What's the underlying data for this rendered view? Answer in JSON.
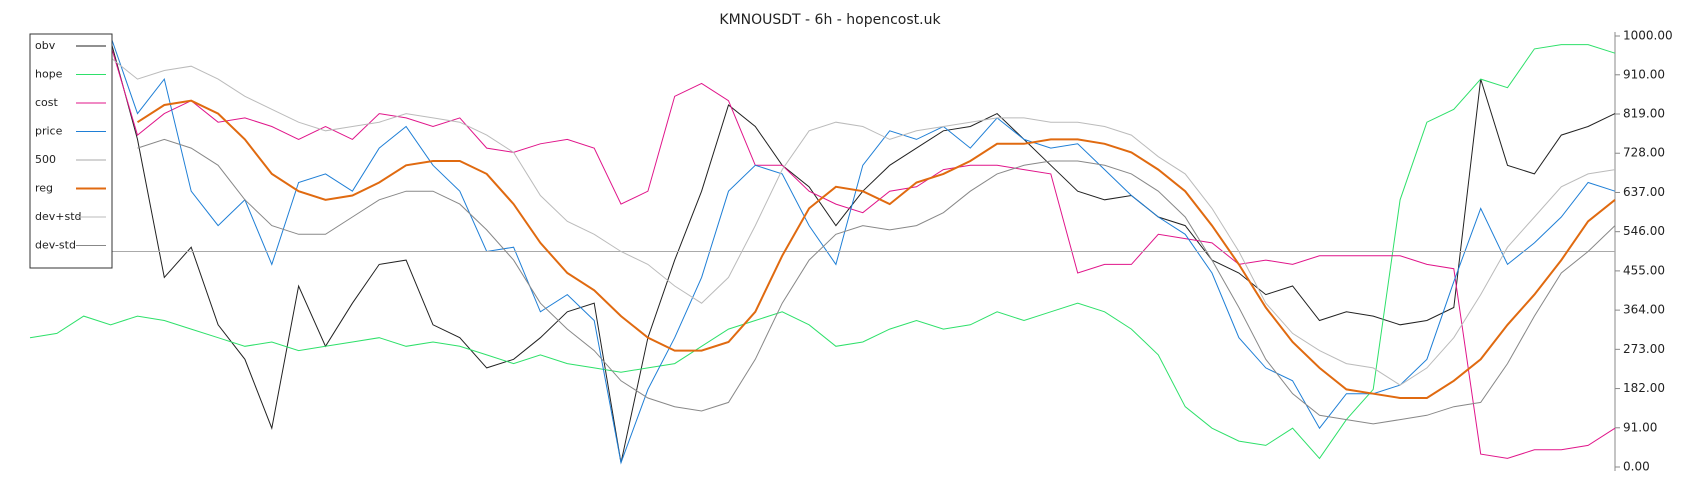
{
  "chart_data": {
    "type": "line",
    "title": "KMNOUSDT - 6h - hopencost.uk",
    "legend": "upper left",
    "grid": false,
    "ylim": [
      0,
      1000
    ],
    "yticks": [
      {
        "value": 0,
        "label": "0.00"
      },
      {
        "value": 91,
        "label": "91.00"
      },
      {
        "value": 182,
        "label": "182.00"
      },
      {
        "value": 273,
        "label": "273.00"
      },
      {
        "value": 364,
        "label": "364.00"
      },
      {
        "value": 455,
        "label": "455.00"
      },
      {
        "value": 546,
        "label": "546.00"
      },
      {
        "value": 637,
        "label": "637.00"
      },
      {
        "value": 728,
        "label": "728.00"
      },
      {
        "value": 819,
        "label": "819.00"
      },
      {
        "value": 910,
        "label": "910.00"
      },
      {
        "value": 1000,
        "label": "1000.00"
      }
    ],
    "series": [
      {
        "name": "obv",
        "color": "#222222",
        "width": 1,
        "values": [
          null,
          null,
          null,
          990,
          760,
          440,
          510,
          330,
          250,
          90,
          420,
          280,
          380,
          470,
          480,
          330,
          300,
          230,
          250,
          300,
          360,
          380,
          10,
          300,
          480,
          640,
          840,
          790,
          700,
          650,
          560,
          640,
          700,
          740,
          780,
          790,
          820,
          760,
          700,
          640,
          620,
          630,
          580,
          560,
          480,
          450,
          400,
          420,
          340,
          360,
          350,
          330,
          340,
          370,
          900,
          700,
          680,
          770,
          790,
          820
        ]
      },
      {
        "name": "hope",
        "color": "#2ee06a",
        "width": 1,
        "values": [
          300,
          310,
          350,
          330,
          350,
          340,
          320,
          300,
          280,
          290,
          270,
          280,
          290,
          300,
          280,
          290,
          280,
          260,
          240,
          260,
          240,
          230,
          220,
          230,
          240,
          280,
          320,
          340,
          360,
          330,
          280,
          290,
          320,
          340,
          320,
          330,
          360,
          340,
          360,
          380,
          360,
          320,
          260,
          140,
          90,
          60,
          50,
          90,
          20,
          110,
          180,
          620,
          800,
          830,
          900,
          880,
          970,
          980,
          980,
          960
        ]
      },
      {
        "name": "cost",
        "color": "#e0158a",
        "width": 1,
        "values": [
          null,
          null,
          null,
          980,
          770,
          820,
          850,
          800,
          810,
          790,
          760,
          790,
          760,
          820,
          810,
          790,
          810,
          740,
          730,
          750,
          760,
          740,
          610,
          640,
          860,
          890,
          850,
          700,
          700,
          640,
          610,
          590,
          640,
          650,
          690,
          700,
          700,
          690,
          680,
          450,
          470,
          470,
          540,
          530,
          520,
          470,
          480,
          470,
          490,
          490,
          490,
          490,
          470,
          460,
          30,
          20,
          40,
          40,
          50,
          90
        ]
      },
      {
        "name": "price",
        "color": "#1f7fd6",
        "width": 1,
        "values": [
          null,
          null,
          null,
          1000,
          820,
          900,
          640,
          560,
          620,
          470,
          660,
          680,
          640,
          740,
          790,
          700,
          640,
          500,
          510,
          360,
          400,
          340,
          10,
          180,
          300,
          440,
          640,
          700,
          680,
          560,
          470,
          700,
          780,
          760,
          790,
          740,
          810,
          760,
          740,
          750,
          690,
          630,
          580,
          540,
          450,
          300,
          230,
          200,
          90,
          170,
          170,
          190,
          250,
          430,
          600,
          470,
          520,
          580,
          660,
          640
        ]
      },
      {
        "name": "500",
        "color": "#aaaaaa",
        "width": 1,
        "values": [
          500,
          500,
          500,
          500,
          500,
          500,
          500,
          500,
          500,
          500,
          500,
          500,
          500,
          500,
          500,
          500,
          500,
          500,
          500,
          500,
          500,
          500,
          500,
          500,
          500,
          500,
          500,
          500,
          500,
          500,
          500,
          500,
          500,
          500,
          500,
          500,
          500,
          500,
          500,
          500,
          500,
          500,
          500,
          500,
          500,
          500,
          500,
          500,
          500,
          500,
          500,
          500,
          500,
          500,
          500,
          500,
          500,
          500,
          500,
          500
        ]
      },
      {
        "name": "reg",
        "color": "#e06a10",
        "width": 2,
        "values": [
          null,
          null,
          null,
          null,
          800,
          840,
          850,
          820,
          760,
          680,
          640,
          620,
          630,
          660,
          700,
          710,
          710,
          680,
          610,
          520,
          450,
          410,
          350,
          300,
          270,
          270,
          290,
          360,
          490,
          600,
          650,
          640,
          610,
          660,
          680,
          710,
          750,
          750,
          760,
          760,
          750,
          730,
          690,
          640,
          560,
          470,
          370,
          290,
          230,
          180,
          170,
          160,
          160,
          200,
          250,
          330,
          400,
          480,
          570,
          620
        ]
      },
      {
        "name": "dev+std",
        "color": "#bbbbbb",
        "width": 1,
        "values": [
          null,
          null,
          null,
          950,
          900,
          920,
          930,
          900,
          860,
          830,
          800,
          780,
          790,
          800,
          820,
          810,
          800,
          770,
          730,
          630,
          570,
          540,
          500,
          470,
          420,
          380,
          440,
          560,
          690,
          780,
          800,
          790,
          760,
          780,
          790,
          800,
          810,
          810,
          800,
          800,
          790,
          770,
          720,
          680,
          600,
          500,
          380,
          310,
          270,
          240,
          230,
          190,
          230,
          300,
          400,
          510,
          580,
          650,
          680,
          690
        ]
      },
      {
        "name": "dev-std",
        "color": "#888888",
        "width": 1,
        "values": [
          null,
          null,
          null,
          null,
          740,
          760,
          740,
          700,
          620,
          560,
          540,
          540,
          580,
          620,
          640,
          640,
          610,
          550,
          480,
          380,
          320,
          270,
          200,
          160,
          140,
          130,
          150,
          250,
          380,
          480,
          540,
          560,
          550,
          560,
          590,
          640,
          680,
          700,
          710,
          710,
          700,
          680,
          640,
          580,
          480,
          370,
          250,
          170,
          120,
          110,
          100,
          110,
          120,
          140,
          150,
          240,
          350,
          450,
          500,
          560
        ]
      }
    ]
  }
}
